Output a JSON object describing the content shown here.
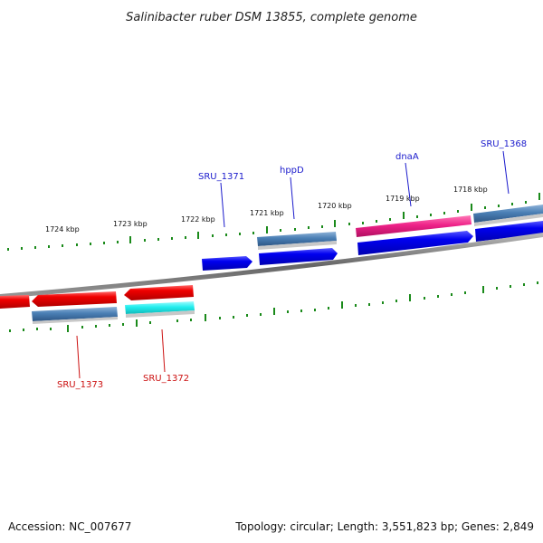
{
  "title": "Salinibacter ruber DSM 13855, complete genome",
  "footer": {
    "accession": "Accession: NC_007677",
    "summary": "Topology: circular; Length: 3,551,823 bp; Genes: 2,849"
  },
  "ticks": [
    {
      "label": "1724 kbp"
    },
    {
      "label": "1723 kbp"
    },
    {
      "label": "1722 kbp"
    },
    {
      "label": "1721 kbp"
    },
    {
      "label": "1720 kbp"
    },
    {
      "label": "1719 kbp"
    },
    {
      "label": "1718 kbp"
    }
  ],
  "genes_forward": [
    {
      "label": "SRU_1371"
    },
    {
      "label": "hppD"
    },
    {
      "label": "dnaA"
    },
    {
      "label": "SRU_1368"
    }
  ],
  "genes_reverse": [
    {
      "label": "SRU_1373"
    },
    {
      "label": "SRU_1372"
    }
  ],
  "colors": {
    "forward_label": "#1a1acc",
    "reverse_label": "#cc1111",
    "cds_blue": "#0000ee",
    "cds_red": "#ee0000",
    "gene_steel": "#4a7fb5",
    "gene_pink": "#ee2288",
    "gene_cyan": "#22eeee",
    "tick_green": "#1a8a1a",
    "backbone": "#777777"
  }
}
